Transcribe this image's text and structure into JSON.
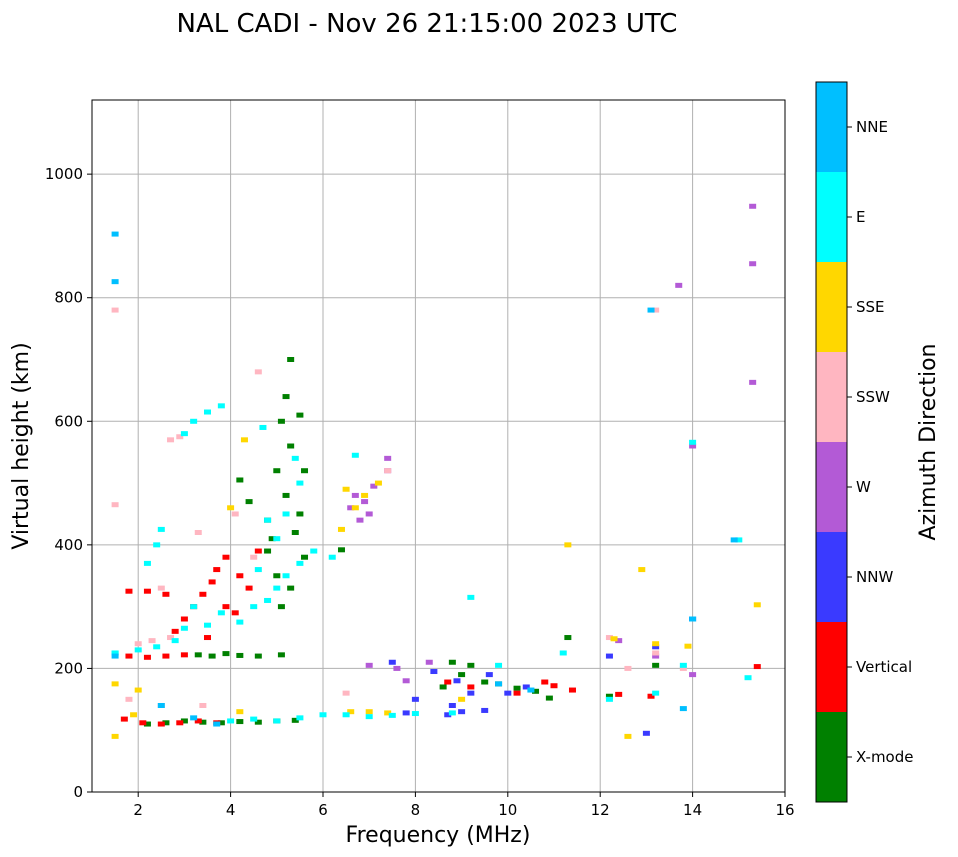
{
  "chart_data": {
    "type": "scatter",
    "title": "NAL CADI - Nov 26 21:15:00 2023 UTC",
    "xlabel": "Frequency (MHz)",
    "ylabel": "Virtual height (km)",
    "xlim": [
      1,
      16
    ],
    "ylim": [
      0,
      1120
    ],
    "xticks": [
      2,
      4,
      6,
      8,
      10,
      12,
      14,
      16
    ],
    "yticks": [
      0,
      200,
      400,
      600,
      800,
      1000
    ],
    "grid": true,
    "colorbar": {
      "label": "Azimuth Direction",
      "categories": [
        {
          "name": "X-mode",
          "color": "#008000"
        },
        {
          "name": "Vertical",
          "color": "#ff0000"
        },
        {
          "name": "NNW",
          "color": "#3a3aff"
        },
        {
          "name": "W",
          "color": "#b35ad6"
        },
        {
          "name": "SSW",
          "color": "#ffb6c1"
        },
        {
          "name": "SSE",
          "color": "#ffd700"
        },
        {
          "name": "E",
          "color": "#00ffff"
        },
        {
          "name": "NNE",
          "color": "#00bfff"
        }
      ]
    },
    "series": [
      {
        "name": "X-mode",
        "points": [
          [
            2.2,
            110
          ],
          [
            2.6,
            112
          ],
          [
            3.0,
            115
          ],
          [
            3.4,
            113
          ],
          [
            3.8,
            112
          ],
          [
            4.2,
            114
          ],
          [
            4.6,
            113
          ],
          [
            5.0,
            115
          ],
          [
            5.4,
            116
          ],
          [
            3.3,
            222
          ],
          [
            3.6,
            220
          ],
          [
            3.9,
            224
          ],
          [
            4.2,
            221
          ],
          [
            4.6,
            220
          ],
          [
            5.1,
            222
          ],
          [
            4.2,
            505
          ],
          [
            4.4,
            470
          ],
          [
            4.8,
            440
          ],
          [
            5.0,
            520
          ],
          [
            5.1,
            600
          ],
          [
            5.2,
            640
          ],
          [
            5.3,
            700
          ],
          [
            5.5,
            610
          ],
          [
            5.3,
            560
          ],
          [
            5.2,
            480
          ],
          [
            5.4,
            420
          ],
          [
            5.6,
            380
          ],
          [
            5.0,
            350
          ],
          [
            4.8,
            390
          ],
          [
            5.3,
            330
          ],
          [
            5.1,
            300
          ],
          [
            4.9,
            410
          ],
          [
            5.5,
            450
          ],
          [
            5.6,
            520
          ],
          [
            8.8,
            210
          ],
          [
            9.2,
            205
          ],
          [
            9.0,
            190
          ],
          [
            9.5,
            178
          ],
          [
            10.2,
            168
          ],
          [
            10.6,
            163
          ],
          [
            10.9,
            152
          ],
          [
            11.3,
            250
          ],
          [
            12.2,
            155
          ],
          [
            8.6,
            170
          ],
          [
            9.8,
            175
          ],
          [
            13.2,
            205
          ],
          [
            6.4,
            392
          ]
        ]
      },
      {
        "name": "Vertical",
        "points": [
          [
            1.7,
            118
          ],
          [
            2.1,
            112
          ],
          [
            2.5,
            110
          ],
          [
            2.9,
            112
          ],
          [
            3.3,
            115
          ],
          [
            3.7,
            112
          ],
          [
            1.8,
            220
          ],
          [
            2.2,
            218
          ],
          [
            2.6,
            220
          ],
          [
            3.0,
            222
          ],
          [
            2.8,
            260
          ],
          [
            3.0,
            280
          ],
          [
            3.2,
            300
          ],
          [
            3.4,
            320
          ],
          [
            3.6,
            340
          ],
          [
            3.9,
            300
          ],
          [
            4.1,
            290
          ],
          [
            3.7,
            360
          ],
          [
            3.9,
            380
          ],
          [
            4.2,
            350
          ],
          [
            4.4,
            330
          ],
          [
            4.6,
            390
          ],
          [
            3.5,
            250
          ],
          [
            1.8,
            325
          ],
          [
            2.2,
            325
          ],
          [
            2.6,
            320
          ],
          [
            8.7,
            178
          ],
          [
            9.2,
            170
          ],
          [
            10.2,
            160
          ],
          [
            10.8,
            178
          ],
          [
            11.0,
            172
          ],
          [
            11.4,
            165
          ],
          [
            12.4,
            158
          ],
          [
            13.1,
            155
          ],
          [
            15.4,
            203
          ]
        ]
      },
      {
        "name": "NNW",
        "points": [
          [
            8.4,
            195
          ],
          [
            8.9,
            180
          ],
          [
            9.2,
            160
          ],
          [
            8.8,
            140
          ],
          [
            9.0,
            130
          ],
          [
            9.5,
            132
          ],
          [
            10.0,
            160
          ],
          [
            10.4,
            170
          ],
          [
            9.6,
            190
          ],
          [
            7.8,
            128
          ],
          [
            8.0,
            150
          ],
          [
            12.2,
            220
          ],
          [
            13.0,
            95
          ],
          [
            13.2,
            235
          ],
          [
            14.0,
            280
          ],
          [
            7.5,
            210
          ],
          [
            8.7,
            125
          ]
        ]
      },
      {
        "name": "W",
        "points": [
          [
            6.7,
            480
          ],
          [
            6.9,
            470
          ],
          [
            7.0,
            450
          ],
          [
            6.8,
            440
          ],
          [
            7.1,
            495
          ],
          [
            6.6,
            460
          ],
          [
            7.4,
            540
          ],
          [
            7.4,
            520
          ],
          [
            7.0,
            205
          ],
          [
            7.6,
            200
          ],
          [
            8.3,
            210
          ],
          [
            12.4,
            245
          ],
          [
            13.2,
            220
          ],
          [
            13.7,
            820
          ],
          [
            14.0,
            560
          ],
          [
            14.0,
            190
          ],
          [
            15.3,
            855
          ],
          [
            15.3,
            663
          ],
          [
            15.3,
            948
          ],
          [
            7.8,
            180
          ]
        ]
      },
      {
        "name": "SSW",
        "points": [
          [
            1.5,
            780
          ],
          [
            1.5,
            465
          ],
          [
            2.0,
            240
          ],
          [
            2.3,
            245
          ],
          [
            2.7,
            250
          ],
          [
            2.5,
            330
          ],
          [
            2.7,
            570
          ],
          [
            2.9,
            575
          ],
          [
            3.3,
            420
          ],
          [
            4.6,
            680
          ],
          [
            4.5,
            380
          ],
          [
            4.1,
            450
          ],
          [
            7.4,
            520
          ],
          [
            13.2,
            780
          ],
          [
            12.2,
            250
          ],
          [
            12.6,
            200
          ],
          [
            13.2,
            225
          ],
          [
            13.8,
            200
          ],
          [
            1.8,
            150
          ],
          [
            2.5,
            140
          ],
          [
            3.4,
            140
          ],
          [
            6.5,
            160
          ]
        ]
      },
      {
        "name": "SSE",
        "points": [
          [
            1.5,
            175
          ],
          [
            1.5,
            90
          ],
          [
            2.0,
            165
          ],
          [
            4.0,
            460
          ],
          [
            4.3,
            570
          ],
          [
            6.4,
            425
          ],
          [
            6.5,
            490
          ],
          [
            6.7,
            460
          ],
          [
            6.9,
            480
          ],
          [
            7.2,
            500
          ],
          [
            6.6,
            130
          ],
          [
            7.0,
            130
          ],
          [
            7.4,
            128
          ],
          [
            9.0,
            150
          ],
          [
            11.3,
            400
          ],
          [
            12.3,
            248
          ],
          [
            12.6,
            90
          ],
          [
            12.9,
            360
          ],
          [
            13.2,
            240
          ],
          [
            13.9,
            236
          ],
          [
            15.4,
            303
          ],
          [
            4.2,
            130
          ],
          [
            1.9,
            125
          ]
        ]
      },
      {
        "name": "E",
        "points": [
          [
            1.5,
            225
          ],
          [
            2.0,
            230
          ],
          [
            2.4,
            235
          ],
          [
            2.8,
            245
          ],
          [
            3.0,
            265
          ],
          [
            3.2,
            300
          ],
          [
            3.5,
            270
          ],
          [
            3.8,
            290
          ],
          [
            4.2,
            275
          ],
          [
            4.5,
            300
          ],
          [
            4.8,
            310
          ],
          [
            5.0,
            330
          ],
          [
            5.2,
            350
          ],
          [
            5.5,
            370
          ],
          [
            5.8,
            390
          ],
          [
            4.8,
            440
          ],
          [
            5.2,
            450
          ],
          [
            5.5,
            500
          ],
          [
            5.4,
            540
          ],
          [
            5.0,
            410
          ],
          [
            4.7,
            590
          ],
          [
            4.6,
            360
          ],
          [
            2.2,
            370
          ],
          [
            2.4,
            400
          ],
          [
            2.5,
            425
          ],
          [
            3.0,
            580
          ],
          [
            3.2,
            600
          ],
          [
            3.5,
            615
          ],
          [
            3.8,
            625
          ],
          [
            1.5,
            225
          ],
          [
            4.0,
            115
          ],
          [
            4.5,
            118
          ],
          [
            5.0,
            115
          ],
          [
            5.5,
            120
          ],
          [
            6.0,
            125
          ],
          [
            6.5,
            125
          ],
          [
            7.0,
            122
          ],
          [
            7.5,
            124
          ],
          [
            8.0,
            127
          ],
          [
            6.2,
            380
          ],
          [
            6.7,
            545
          ],
          [
            9.2,
            315
          ],
          [
            8.8,
            128
          ],
          [
            9.8,
            205
          ],
          [
            11.2,
            225
          ],
          [
            12.2,
            150
          ],
          [
            13.2,
            160
          ],
          [
            13.8,
            205
          ],
          [
            14.0,
            566
          ],
          [
            15.2,
            185
          ],
          [
            15.0,
            408
          ]
        ]
      },
      {
        "name": "NNE",
        "points": [
          [
            1.5,
            903
          ],
          [
            1.5,
            826
          ],
          [
            1.5,
            220
          ],
          [
            2.5,
            140
          ],
          [
            3.2,
            120
          ],
          [
            3.7,
            110
          ],
          [
            9.8,
            175
          ],
          [
            10.5,
            165
          ],
          [
            13.1,
            780
          ],
          [
            13.8,
            135
          ],
          [
            14.9,
            408
          ],
          [
            14.0,
            280
          ]
        ]
      }
    ]
  }
}
